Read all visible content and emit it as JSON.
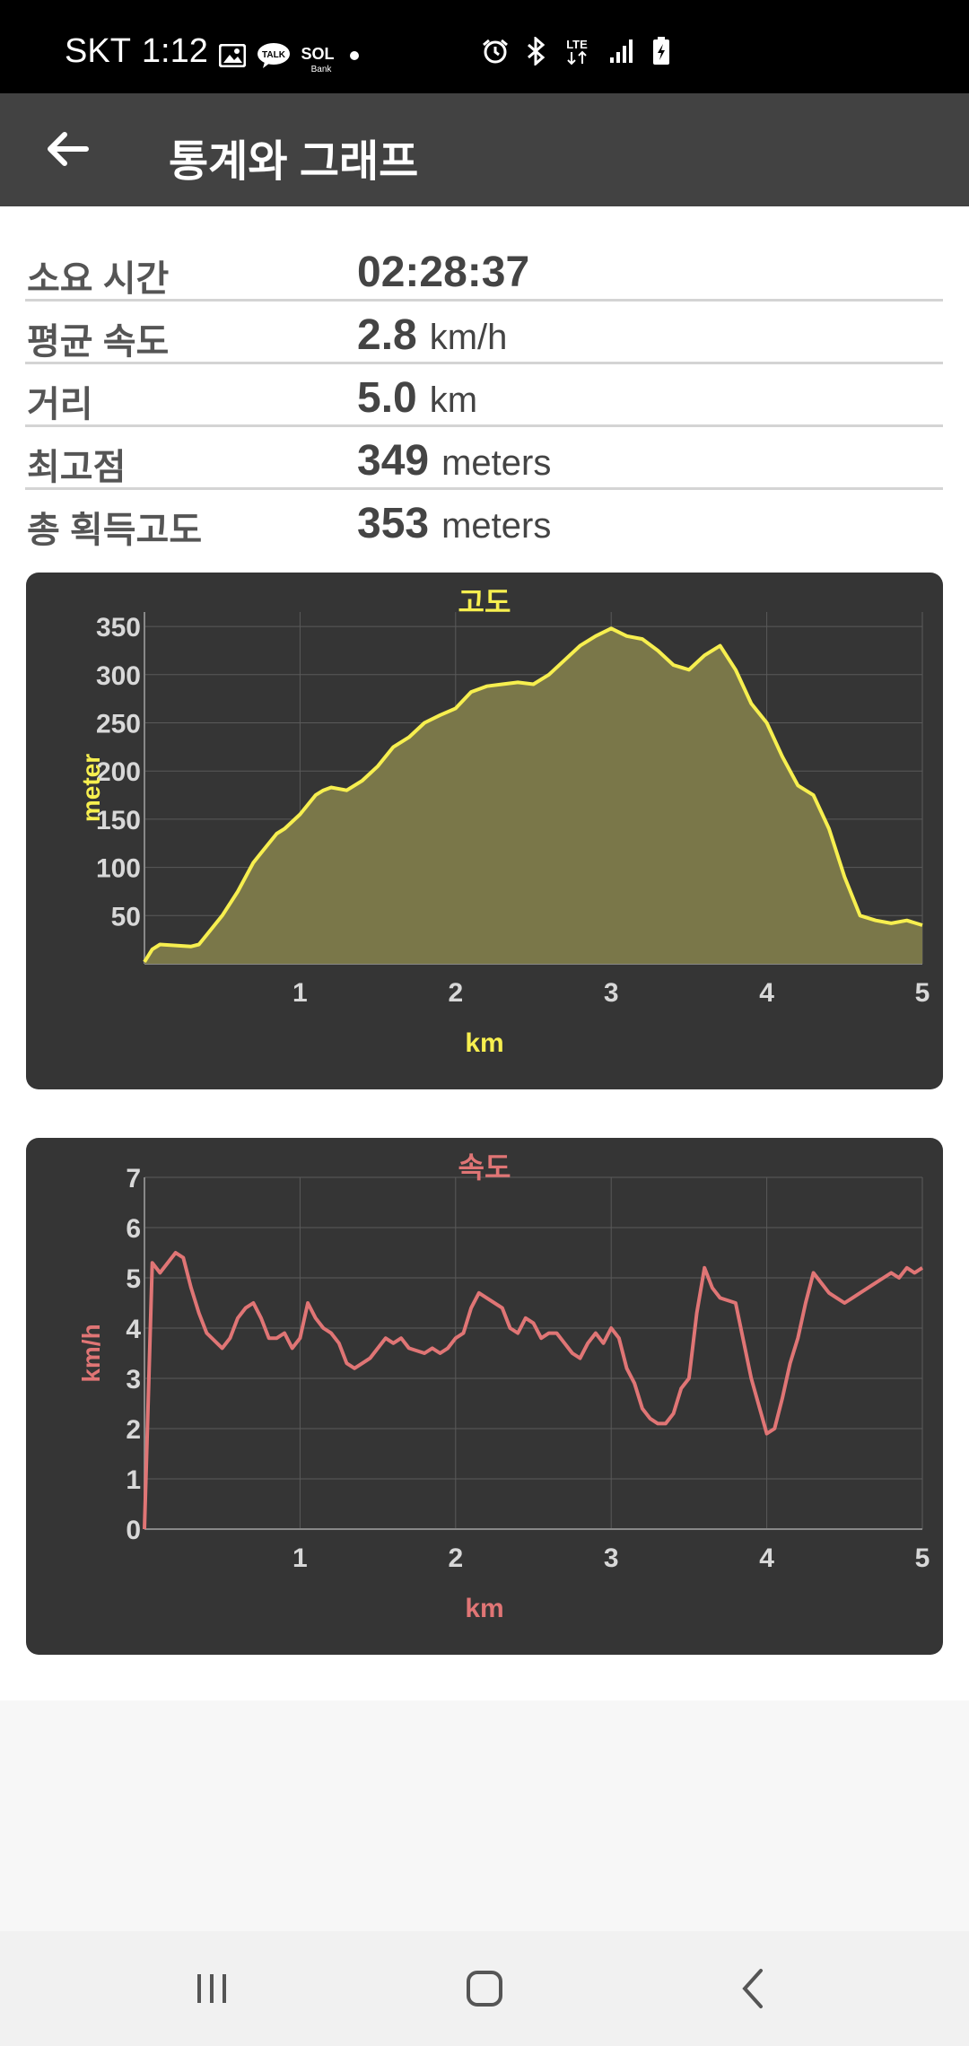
{
  "status_bar": {
    "carrier": "SKT",
    "time": "1:12",
    "left_icons": [
      "gallery-icon",
      "kakaotalk-icon",
      "sol-bank-icon",
      "dot-icon"
    ],
    "right_icons": [
      "alarm-icon",
      "bluetooth-icon",
      "lte-icon",
      "signal-icon",
      "battery-icon"
    ],
    "talk_label": "TALK",
    "sol_label": "SOL",
    "bank_label": "Bank",
    "lte_label": "LTE"
  },
  "app_bar": {
    "title": "통계와 그래프"
  },
  "stats": [
    {
      "label": "소요 시간",
      "value": "02:28:37",
      "unit": ""
    },
    {
      "label": "평균 속도",
      "value": "2.8",
      "unit": "km/h"
    },
    {
      "label": "거리",
      "value": "5.0",
      "unit": "km"
    },
    {
      "label": "최고점",
      "value": "349",
      "unit": "meters"
    },
    {
      "label": "총 획득고도",
      "value": "353",
      "unit": "meters"
    }
  ],
  "colors": {
    "altitude_line": "#f7ef4f",
    "altitude_fill": "#7a7749",
    "speed_line": "#e07575",
    "chart_bg": "#353535",
    "grid": "#5a5a5a",
    "tick_label": "#d8d8d8"
  },
  "chart_data": [
    {
      "type": "area",
      "title": "고도",
      "xlabel": "km",
      "ylabel": "meter",
      "xlim": [
        0,
        5
      ],
      "ylim": [
        0,
        365
      ],
      "x_ticks": [
        "1",
        "2",
        "3",
        "4",
        "5"
      ],
      "y_ticks": [
        "50",
        "100",
        "150",
        "200",
        "250",
        "300",
        "350"
      ],
      "x": [
        0.0,
        0.05,
        0.1,
        0.2,
        0.3,
        0.35,
        0.4,
        0.5,
        0.6,
        0.65,
        0.7,
        0.75,
        0.8,
        0.85,
        0.9,
        1.0,
        1.05,
        1.1,
        1.15,
        1.2,
        1.3,
        1.4,
        1.5,
        1.6,
        1.7,
        1.8,
        1.9,
        2.0,
        2.1,
        2.2,
        2.3,
        2.4,
        2.5,
        2.6,
        2.7,
        2.8,
        2.9,
        3.0,
        3.1,
        3.2,
        3.3,
        3.4,
        3.5,
        3.6,
        3.7,
        3.8,
        3.9,
        4.0,
        4.1,
        4.2,
        4.3,
        4.4,
        4.5,
        4.6,
        4.7,
        4.8,
        4.9,
        5.0
      ],
      "values": [
        2,
        15,
        20,
        19,
        18,
        20,
        30,
        50,
        75,
        90,
        105,
        115,
        125,
        135,
        140,
        155,
        165,
        175,
        180,
        183,
        180,
        190,
        205,
        225,
        235,
        250,
        258,
        265,
        282,
        288,
        290,
        292,
        290,
        300,
        315,
        330,
        340,
        348,
        340,
        337,
        325,
        310,
        305,
        320,
        330,
        305,
        270,
        250,
        215,
        185,
        175,
        140,
        90,
        50,
        45,
        42,
        45,
        40
      ]
    },
    {
      "type": "line",
      "title": "속도",
      "xlabel": "km",
      "ylabel": "km/h",
      "xlim": [
        0,
        5
      ],
      "ylim": [
        0,
        7
      ],
      "x_ticks": [
        "1",
        "2",
        "3",
        "4",
        "5"
      ],
      "y_ticks": [
        "0",
        "1",
        "2",
        "3",
        "4",
        "5",
        "6",
        "7"
      ],
      "x": [
        0.0,
        0.05,
        0.1,
        0.2,
        0.25,
        0.3,
        0.35,
        0.4,
        0.5,
        0.55,
        0.6,
        0.65,
        0.7,
        0.75,
        0.8,
        0.85,
        0.9,
        0.95,
        1.0,
        1.05,
        1.1,
        1.15,
        1.2,
        1.25,
        1.3,
        1.35,
        1.4,
        1.45,
        1.5,
        1.55,
        1.6,
        1.65,
        1.7,
        1.8,
        1.85,
        1.9,
        1.95,
        2.0,
        2.05,
        2.1,
        2.15,
        2.2,
        2.3,
        2.35,
        2.4,
        2.45,
        2.5,
        2.55,
        2.6,
        2.65,
        2.7,
        2.75,
        2.8,
        2.85,
        2.9,
        2.95,
        3.0,
        3.05,
        3.1,
        3.15,
        3.2,
        3.25,
        3.3,
        3.35,
        3.4,
        3.45,
        3.5,
        3.55,
        3.6,
        3.65,
        3.7,
        3.8,
        3.9,
        4.0,
        4.05,
        4.1,
        4.15,
        4.2,
        4.25,
        4.3,
        4.35,
        4.4,
        4.45,
        4.5,
        4.55,
        4.6,
        4.65,
        4.7,
        4.75,
        4.8,
        4.85,
        4.9,
        4.95,
        5.0
      ],
      "values": [
        0,
        5.3,
        5.1,
        5.5,
        5.4,
        4.8,
        4.3,
        3.9,
        3.6,
        3.8,
        4.2,
        4.4,
        4.5,
        4.2,
        3.8,
        3.8,
        3.9,
        3.6,
        3.8,
        4.5,
        4.2,
        4.0,
        3.9,
        3.7,
        3.3,
        3.2,
        3.3,
        3.4,
        3.6,
        3.8,
        3.7,
        3.8,
        3.6,
        3.5,
        3.6,
        3.5,
        3.6,
        3.8,
        3.9,
        4.4,
        4.7,
        4.6,
        4.4,
        4.0,
        3.9,
        4.2,
        4.1,
        3.8,
        3.9,
        3.9,
        3.7,
        3.5,
        3.4,
        3.7,
        3.9,
        3.7,
        4.0,
        3.8,
        3.2,
        2.9,
        2.4,
        2.2,
        2.1,
        2.1,
        2.3,
        2.8,
        3.0,
        4.3,
        5.2,
        4.8,
        4.6,
        4.5,
        3.0,
        1.9,
        2.0,
        2.6,
        3.3,
        3.8,
        4.5,
        5.1,
        4.9,
        4.7,
        4.6,
        4.5,
        4.6,
        4.7,
        4.8,
        4.9,
        5.0,
        5.1,
        5.0,
        5.2,
        5.1,
        5.2
      ]
    }
  ]
}
